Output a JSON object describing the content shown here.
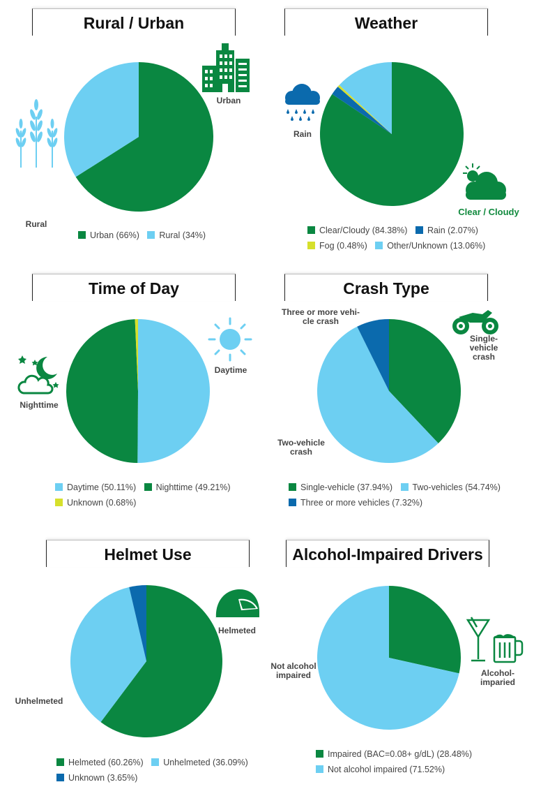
{
  "colors": {
    "green": "#0a8741",
    "lightblue": "#6dcff2",
    "darkblue": "#0b6aad",
    "yellow": "#d6e02c"
  },
  "icons": [
    "wheat-icon",
    "buildings-icon",
    "rain-cloud-icon",
    "sun-cloud-icon",
    "moon-cloud-icon",
    "sun-icon",
    "motorcycle-icon",
    "helmet-icon",
    "cocktail-glass-icon",
    "beer-mug-icon"
  ],
  "chart_data": [
    {
      "type": "pie",
      "title": "Rural / Urban",
      "series": [
        {
          "name": "Urban",
          "label": "Urban (66%)",
          "value": 66,
          "color": "#0a8741"
        },
        {
          "name": "Rural",
          "label": "Rural (34%)",
          "value": 34,
          "color": "#6dcff2"
        }
      ],
      "callouts": [
        "Urban",
        "Rural"
      ]
    },
    {
      "type": "pie",
      "title": "Weather",
      "series": [
        {
          "name": "Clear/Cloudy",
          "label": "Clear/Cloudy (84.38%)",
          "value": 84.38,
          "color": "#0a8741"
        },
        {
          "name": "Rain",
          "label": "Rain (2.07%)",
          "value": 2.07,
          "color": "#0b6aad"
        },
        {
          "name": "Fog",
          "label": "Fog (0.48%)",
          "value": 0.48,
          "color": "#d6e02c"
        },
        {
          "name": "Other/Unknown",
          "label": "Other/Unknown (13.06%)",
          "value": 13.06,
          "color": "#6dcff2"
        }
      ],
      "callouts": [
        "Rain",
        "Clear / Cloudy"
      ]
    },
    {
      "type": "pie",
      "title": "Time of Day",
      "series": [
        {
          "name": "Daytime",
          "label": "Daytime (50.11%)",
          "value": 50.11,
          "color": "#6dcff2"
        },
        {
          "name": "Nighttime",
          "label": "Nighttime (49.21%)",
          "value": 49.21,
          "color": "#0a8741"
        },
        {
          "name": "Unknown",
          "label": "Unknown (0.68%)",
          "value": 0.68,
          "color": "#d6e02c"
        }
      ],
      "callouts": [
        "Daytime",
        "Nighttime"
      ]
    },
    {
      "type": "pie",
      "title": "Crash Type",
      "series": [
        {
          "name": "Single-vehicle",
          "label": "Single-vehicle (37.94%)",
          "value": 37.94,
          "color": "#0a8741"
        },
        {
          "name": "Two-vehicles",
          "label": "Two-vehicles (54.74%)",
          "value": 54.74,
          "color": "#6dcff2"
        },
        {
          "name": "Three or more vehicles",
          "label": "Three or more vehicles (7.32%)",
          "value": 7.32,
          "color": "#0b6aad"
        }
      ],
      "callouts": [
        "Three or more vehi-\ncle crash",
        "Single-\nvehicle crash",
        "Two-vehicle\ncrash"
      ]
    },
    {
      "type": "pie",
      "title": "Helmet Use",
      "series": [
        {
          "name": "Helmeted",
          "label": "Helmeted (60.26%)",
          "value": 60.26,
          "color": "#0a8741"
        },
        {
          "name": "Unhelmeted",
          "label": "Unhelmeted (36.09%)",
          "value": 36.09,
          "color": "#6dcff2"
        },
        {
          "name": "Unknown",
          "label": "Unknown (3.65%)",
          "value": 3.65,
          "color": "#0b6aad"
        }
      ],
      "callouts": [
        "Helmeted",
        "Unhelmeted"
      ]
    },
    {
      "type": "pie",
      "title": "Alcohol-Impaired Drivers",
      "series": [
        {
          "name": "Impaired",
          "label": "Impaired (BAC=0.08+ g/dL) (28.48%)",
          "value": 28.48,
          "color": "#0a8741"
        },
        {
          "name": "Not alcohol impaired",
          "label": "Not alcohol impaired (71.52%)",
          "value": 71.52,
          "color": "#6dcff2"
        }
      ],
      "callouts": [
        "Not alcohol\nimpaired",
        "Alcohol-\nimparied"
      ]
    }
  ]
}
